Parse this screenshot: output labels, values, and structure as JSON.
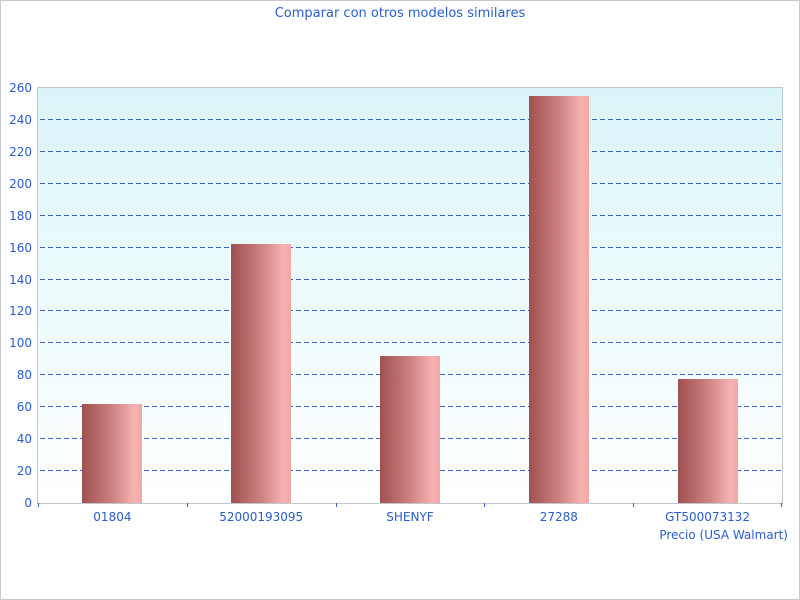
{
  "title": "Comparar con otros modelos similares",
  "colors": {
    "title_text": "#2a5ccc",
    "axis_text": "#2a5ccc",
    "gridline": "#3a5fc0",
    "plot_border": "#c2c7cb",
    "plot_bg_top": "#daf5f8",
    "plot_bg_bottom": "#ffffff",
    "bar_gradient_left": "#a05050",
    "bar_gradient_mid": "#cd8181",
    "bar_gradient_right": "#f7b3b3",
    "bar_gradient_edge": "#f0a6a6"
  },
  "chart_data": {
    "type": "bar",
    "title": "Comparar con otros modelos similares",
    "categories": [
      "01804",
      "52000193095",
      "SHENYF",
      "27288",
      "GT500073132"
    ],
    "values": [
      62,
      162,
      92,
      255,
      78
    ],
    "series": [
      {
        "name": "Precio",
        "values": [
          62,
          162,
          92,
          255,
          78
        ]
      }
    ],
    "xlabel": "Precio (USA Walmart)",
    "ylabel": "",
    "ylim": [
      0,
      260
    ],
    "ytick_step": 20,
    "grid": "horizontal-dashed",
    "legend_position": "none",
    "bar_orientation": "vertical"
  }
}
